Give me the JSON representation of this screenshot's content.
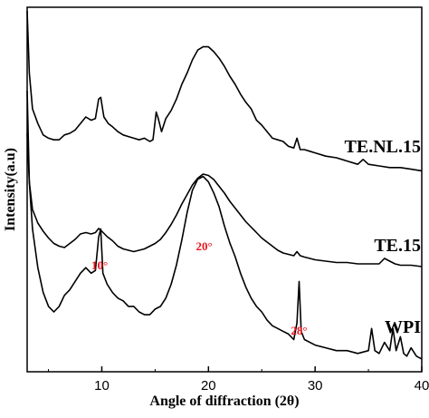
{
  "chart_data": {
    "type": "line",
    "title": "",
    "xlabel": "Angle of diffraction (2θ)",
    "ylabel": "Intensity(a.u)",
    "xlim": [
      3,
      40
    ],
    "xticks": [
      10,
      20,
      30,
      40
    ],
    "grid": false,
    "annotation_color": "#e8141c",
    "line_color": "#000000",
    "annotations": [
      {
        "text": "10°",
        "x": 9.8
      },
      {
        "text": "20°",
        "x": 19.6
      },
      {
        "text": "28°",
        "x": 28.5
      }
    ],
    "series": [
      {
        "name": "TE.NL.15",
        "x": [
          3.0,
          3.2,
          3.5,
          4.0,
          4.5,
          5.0,
          5.5,
          6.0,
          6.5,
          7.0,
          7.5,
          8.0,
          8.5,
          9.0,
          9.4,
          9.7,
          9.9,
          10.2,
          10.6,
          11.0,
          11.5,
          12.0,
          12.5,
          13.0,
          13.5,
          14.0,
          14.5,
          14.8,
          15.1,
          15.3,
          15.6,
          16.0,
          16.5,
          17.0,
          17.5,
          18.0,
          18.5,
          19.0,
          19.5,
          20.0,
          20.5,
          21.0,
          21.5,
          22.0,
          22.5,
          23.0,
          23.5,
          24.0,
          24.5,
          25.0,
          25.5,
          26.0,
          26.5,
          27.0,
          27.5,
          28.0,
          28.3,
          28.6,
          29.0,
          29.5,
          30.0,
          31.0,
          32.0,
          33.0,
          34.0,
          34.5,
          35.0,
          36.0,
          37.0,
          38.0,
          39.0,
          40.0
        ],
        "y": [
          1.0,
          0.62,
          0.4,
          0.31,
          0.24,
          0.22,
          0.21,
          0.21,
          0.24,
          0.25,
          0.27,
          0.31,
          0.35,
          0.33,
          0.34,
          0.46,
          0.47,
          0.35,
          0.31,
          0.29,
          0.26,
          0.24,
          0.23,
          0.22,
          0.21,
          0.22,
          0.2,
          0.21,
          0.38,
          0.34,
          0.26,
          0.34,
          0.39,
          0.46,
          0.55,
          0.62,
          0.7,
          0.76,
          0.78,
          0.78,
          0.75,
          0.71,
          0.66,
          0.6,
          0.55,
          0.49,
          0.44,
          0.4,
          0.33,
          0.3,
          0.26,
          0.22,
          0.21,
          0.2,
          0.17,
          0.16,
          0.22,
          0.15,
          0.15,
          0.14,
          0.13,
          0.11,
          0.1,
          0.08,
          0.06,
          0.09,
          0.06,
          0.05,
          0.04,
          0.04,
          0.03,
          0.02
        ]
      },
      {
        "name": "TE.15",
        "x": [
          3.0,
          3.2,
          3.5,
          4.0,
          4.5,
          5.0,
          5.5,
          6.0,
          6.5,
          7.0,
          7.5,
          8.0,
          8.5,
          9.0,
          9.4,
          9.7,
          10.0,
          10.5,
          11.0,
          11.5,
          12.0,
          12.5,
          13.0,
          13.5,
          14.0,
          14.5,
          15.0,
          15.5,
          16.0,
          16.5,
          17.0,
          17.5,
          18.0,
          18.5,
          19.0,
          19.5,
          20.0,
          20.5,
          21.0,
          21.5,
          22.0,
          22.5,
          23.0,
          23.5,
          24.0,
          24.5,
          25.0,
          25.5,
          26.0,
          26.5,
          27.0,
          27.5,
          28.0,
          28.3,
          28.6,
          29.0,
          29.5,
          30.0,
          31.0,
          32.0,
          33.0,
          34.0,
          35.0,
          36.0,
          36.5,
          37.0,
          37.5,
          38.0,
          39.0,
          40.0
        ],
        "y": [
          1.0,
          0.64,
          0.44,
          0.34,
          0.28,
          0.23,
          0.19,
          0.17,
          0.16,
          0.19,
          0.22,
          0.26,
          0.27,
          0.26,
          0.27,
          0.3,
          0.28,
          0.24,
          0.21,
          0.17,
          0.15,
          0.14,
          0.13,
          0.14,
          0.15,
          0.17,
          0.19,
          0.22,
          0.27,
          0.33,
          0.4,
          0.48,
          0.55,
          0.62,
          0.67,
          0.7,
          0.69,
          0.66,
          0.61,
          0.56,
          0.5,
          0.45,
          0.4,
          0.35,
          0.31,
          0.27,
          0.23,
          0.2,
          0.17,
          0.14,
          0.12,
          0.11,
          0.1,
          0.13,
          0.1,
          0.09,
          0.08,
          0.07,
          0.06,
          0.05,
          0.05,
          0.04,
          0.04,
          0.04,
          0.08,
          0.06,
          0.04,
          0.03,
          0.03,
          0.02
        ]
      },
      {
        "name": "WPI",
        "x": [
          3.0,
          3.2,
          3.5,
          4.0,
          4.5,
          5.0,
          5.5,
          6.0,
          6.5,
          7.0,
          7.5,
          8.0,
          8.5,
          9.0,
          9.4,
          9.7,
          9.9,
          10.1,
          10.5,
          11.0,
          11.5,
          12.0,
          12.5,
          13.0,
          13.5,
          14.0,
          14.5,
          15.0,
          15.5,
          16.0,
          16.5,
          17.0,
          17.5,
          18.0,
          18.5,
          19.0,
          19.5,
          20.0,
          20.5,
          21.0,
          21.5,
          22.0,
          22.5,
          23.0,
          23.5,
          24.0,
          24.5,
          25.0,
          25.5,
          26.0,
          26.5,
          27.0,
          27.5,
          28.0,
          28.3,
          28.5,
          28.7,
          29.0,
          30.0,
          31.0,
          32.0,
          33.0,
          34.0,
          35.0,
          35.3,
          35.6,
          36.0,
          36.5,
          37.0,
          37.3,
          37.6,
          38.0,
          38.3,
          38.6,
          39.0,
          39.5,
          40.0
        ],
        "y": [
          1.0,
          0.67,
          0.5,
          0.36,
          0.27,
          0.22,
          0.2,
          0.22,
          0.26,
          0.28,
          0.31,
          0.34,
          0.36,
          0.34,
          0.35,
          0.47,
          0.5,
          0.34,
          0.3,
          0.27,
          0.25,
          0.24,
          0.22,
          0.22,
          0.2,
          0.19,
          0.19,
          0.21,
          0.22,
          0.25,
          0.3,
          0.37,
          0.46,
          0.56,
          0.64,
          0.68,
          0.69,
          0.67,
          0.63,
          0.58,
          0.51,
          0.45,
          0.4,
          0.34,
          0.29,
          0.25,
          0.22,
          0.2,
          0.17,
          0.15,
          0.14,
          0.13,
          0.12,
          0.1,
          0.16,
          0.31,
          0.13,
          0.1,
          0.08,
          0.07,
          0.06,
          0.06,
          0.05,
          0.06,
          0.14,
          0.06,
          0.05,
          0.09,
          0.06,
          0.14,
          0.06,
          0.11,
          0.05,
          0.04,
          0.07,
          0.04,
          0.03
        ]
      }
    ]
  }
}
